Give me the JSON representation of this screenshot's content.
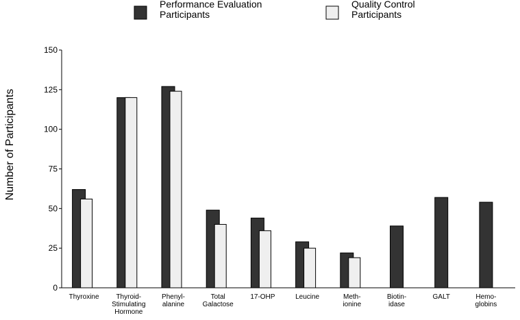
{
  "chart_data": {
    "type": "bar",
    "title": "",
    "xlabel": "",
    "ylabel": "Number of Participants",
    "ylim": [
      0,
      150
    ],
    "yticks": [
      0,
      25,
      50,
      75,
      100,
      125,
      150
    ],
    "grid": false,
    "legend_position": "top",
    "categories": [
      [
        "Thyroxine"
      ],
      [
        "Thyroid-",
        "Stimulating",
        "Hormone"
      ],
      [
        "Phenyl-",
        "alanine"
      ],
      [
        "Total",
        "Galactose"
      ],
      [
        "17-OHP"
      ],
      [
        "Leucine"
      ],
      [
        "Meth-",
        "ionine"
      ],
      [
        "Biotin-",
        "idase"
      ],
      [
        "GALT"
      ],
      [
        "Hemo-",
        "globins"
      ]
    ],
    "series": [
      {
        "name": [
          "Performance Evaluation",
          "Participants"
        ],
        "color": "#333333",
        "values": [
          62,
          120,
          127,
          49,
          44,
          29,
          22,
          39,
          57,
          54
        ]
      },
      {
        "name": [
          "Quality Control",
          "Participants"
        ],
        "color": "#efefef",
        "values": [
          56,
          120,
          124,
          40,
          36,
          25,
          19,
          null,
          null,
          null
        ]
      }
    ]
  }
}
